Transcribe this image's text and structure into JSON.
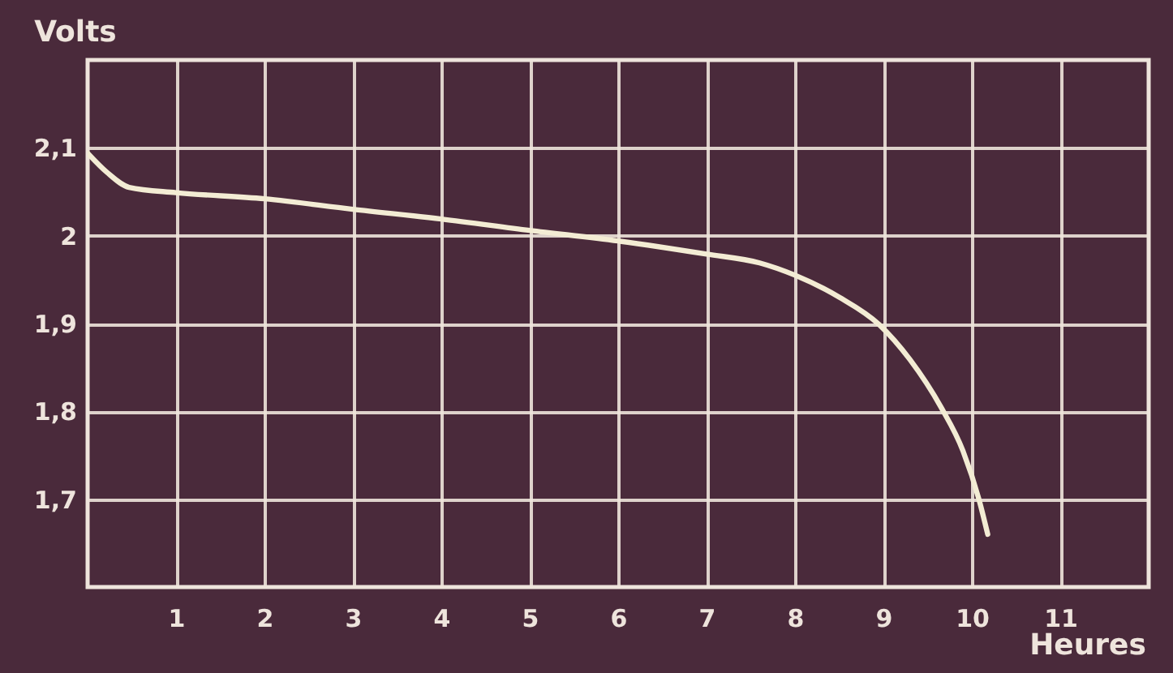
{
  "chart_data": {
    "type": "line",
    "xlabel": "Heures",
    "ylabel": "Volts",
    "x": [
      0,
      0.22,
      0.47,
      1,
      2,
      3,
      4,
      5,
      6,
      7,
      7.6,
      8,
      8.5,
      8.95,
      9.3,
      9.65,
      9.9,
      10.08,
      10.18
    ],
    "values": [
      2.094,
      2.072,
      2.055,
      2.049,
      2.042,
      2.03,
      2.019,
      2.006,
      1.994,
      1.979,
      1.969,
      1.955,
      1.93,
      1.899,
      1.859,
      1.805,
      1.755,
      1.7,
      1.66
    ],
    "color": "#f3ecd4",
    "xlim": [
      0,
      12
    ],
    "ylim": [
      1.6,
      2.2
    ],
    "xticks": [
      1,
      2,
      3,
      4,
      5,
      6,
      7,
      8,
      9,
      10,
      11
    ],
    "yticks": [
      {
        "value": 1.7,
        "label": "1,7"
      },
      {
        "value": 1.8,
        "label": "1,8"
      },
      {
        "value": 1.9,
        "label": "1,9"
      },
      2,
      {
        "value": 2.1,
        "label": "2,1"
      }
    ],
    "grid": true
  }
}
